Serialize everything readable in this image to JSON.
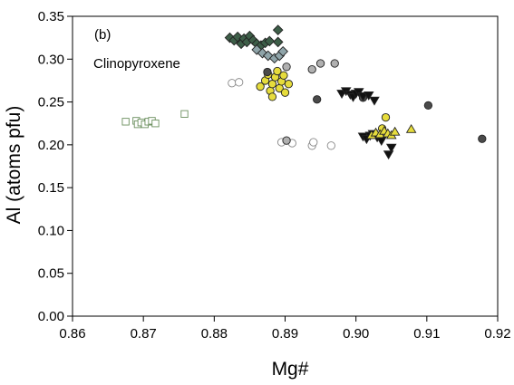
{
  "chart_data": {
    "type": "scatter",
    "panel_label": "(b)",
    "title": "Clinopyroxene",
    "xlabel": "Mg#",
    "ylabel": "Al (atoms pfu)",
    "xlim": [
      0.86,
      0.92
    ],
    "ylim": [
      0.0,
      0.35
    ],
    "xticks": [
      "0.86",
      "0.87",
      "0.88",
      "0.89",
      "0.90",
      "0.91",
      "0.92"
    ],
    "yticks": [
      "0.00",
      "0.05",
      "0.10",
      "0.15",
      "0.20",
      "0.25",
      "0.30",
      "0.35"
    ],
    "grid": false,
    "legend": "none",
    "series": [
      {
        "marker": "square-open",
        "color": "#6b8f5e",
        "fill": "#ffffff",
        "points": [
          [
            0.8675,
            0.227
          ],
          [
            0.869,
            0.228
          ],
          [
            0.8692,
            0.224
          ],
          [
            0.8697,
            0.226
          ],
          [
            0.8702,
            0.224
          ],
          [
            0.8707,
            0.227
          ],
          [
            0.8712,
            0.228
          ],
          [
            0.8717,
            0.225
          ],
          [
            0.8758,
            0.236
          ]
        ]
      },
      {
        "marker": "diamond",
        "color": "#3d5e48",
        "fill": "#3d5e48",
        "points": [
          [
            0.8822,
            0.325
          ],
          [
            0.8828,
            0.322
          ],
          [
            0.8833,
            0.326
          ],
          [
            0.8838,
            0.318
          ],
          [
            0.8842,
            0.324
          ],
          [
            0.8846,
            0.32
          ],
          [
            0.885,
            0.327
          ],
          [
            0.8855,
            0.322
          ],
          [
            0.886,
            0.318
          ],
          [
            0.8866,
            0.316
          ],
          [
            0.8872,
            0.319
          ],
          [
            0.8878,
            0.321
          ],
          [
            0.889,
            0.334
          ],
          [
            0.889,
            0.32
          ]
        ]
      },
      {
        "marker": "diamond",
        "color": "#8fa4a9",
        "fill": "#8fa4a9",
        "points": [
          [
            0.886,
            0.311
          ],
          [
            0.8868,
            0.307
          ],
          [
            0.8876,
            0.304
          ],
          [
            0.8885,
            0.301
          ],
          [
            0.8892,
            0.304
          ],
          [
            0.8897,
            0.309
          ]
        ]
      },
      {
        "marker": "circle-open",
        "color": "#888888",
        "fill": "#ffffff",
        "points": [
          [
            0.8825,
            0.272
          ],
          [
            0.8835,
            0.273
          ],
          [
            0.8895,
            0.203
          ],
          [
            0.891,
            0.202
          ],
          [
            0.8938,
            0.199
          ],
          [
            0.894,
            0.203
          ],
          [
            0.8965,
            0.199
          ]
        ]
      },
      {
        "marker": "circle",
        "color": "#b0b0b0",
        "fill": "#b0b0b0",
        "points": [
          [
            0.8902,
            0.205
          ],
          [
            0.8902,
            0.291
          ],
          [
            0.8938,
            0.288
          ],
          [
            0.895,
            0.295
          ],
          [
            0.897,
            0.295
          ]
        ]
      },
      {
        "marker": "circle",
        "color": "#e6dc3c",
        "fill": "#e6dc3c",
        "points": [
          [
            0.8865,
            0.268
          ],
          [
            0.8872,
            0.275
          ],
          [
            0.8876,
            0.282
          ],
          [
            0.8879,
            0.263
          ],
          [
            0.8882,
            0.271
          ],
          [
            0.8886,
            0.279
          ],
          [
            0.8889,
            0.286
          ],
          [
            0.8892,
            0.266
          ],
          [
            0.8895,
            0.274
          ],
          [
            0.8898,
            0.281
          ],
          [
            0.89,
            0.261
          ],
          [
            0.8905,
            0.271
          ],
          [
            0.8882,
            0.256
          ],
          [
            0.9042,
            0.232
          ],
          [
            0.9037,
            0.219
          ]
        ]
      },
      {
        "marker": "circle",
        "color": "#4a4a4a",
        "fill": "#4a4a4a",
        "points": [
          [
            0.8875,
            0.285
          ],
          [
            0.8945,
            0.253
          ],
          [
            0.901,
            0.255
          ],
          [
            0.9102,
            0.246
          ],
          [
            0.9178,
            0.207
          ]
        ]
      },
      {
        "marker": "triangle-down",
        "color": "#111111",
        "fill": "#111111",
        "points": [
          [
            0.898,
            0.26
          ],
          [
            0.8986,
            0.263
          ],
          [
            0.8992,
            0.259
          ],
          [
            0.8996,
            0.256
          ],
          [
            0.9,
            0.26
          ],
          [
            0.9004,
            0.262
          ],
          [
            0.901,
            0.257
          ],
          [
            0.9018,
            0.258
          ],
          [
            0.9026,
            0.252
          ],
          [
            0.901,
            0.21
          ],
          [
            0.9015,
            0.207
          ],
          [
            0.902,
            0.211
          ],
          [
            0.9024,
            0.213
          ],
          [
            0.903,
            0.209
          ],
          [
            0.9036,
            0.205
          ],
          [
            0.9046,
            0.189
          ],
          [
            0.905,
            0.197
          ]
        ]
      },
      {
        "marker": "triangle-up",
        "color": "#e6dc3c",
        "fill": "#e6dc3c",
        "points": [
          [
            0.9022,
            0.211
          ],
          [
            0.9028,
            0.214
          ],
          [
            0.9034,
            0.212
          ],
          [
            0.904,
            0.216
          ],
          [
            0.9045,
            0.213
          ],
          [
            0.905,
            0.211
          ],
          [
            0.9055,
            0.215
          ],
          [
            0.9078,
            0.218
          ]
        ]
      }
    ]
  }
}
